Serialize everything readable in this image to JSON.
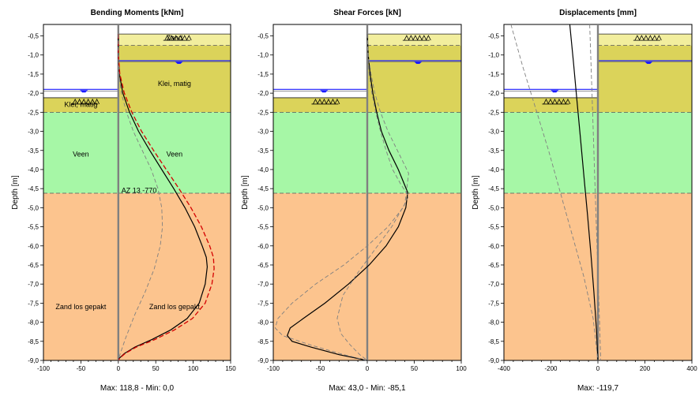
{
  "colors": {
    "layer_clay": "#dbd35a",
    "layer_clay_top": "#f2ee9e",
    "layer_peat": "#a6f7a6",
    "layer_sand": "#fcc48e",
    "wall": "#808080",
    "water": "#1a1aff",
    "dashed_line": "#808080",
    "red_dashed": "#d40000",
    "main_line": "#000000"
  },
  "chart_data": [
    {
      "type": "line",
      "title": "Bending Moments [kNm]",
      "ylabel": "Depth [m]",
      "footer": "Max: 118,8 - Min: 0,0",
      "xlim": [
        -100,
        150
      ],
      "ylim": [
        -9.0,
        -0.2
      ],
      "xticks": [
        -100,
        -50,
        0,
        50,
        100,
        150
      ],
      "yticks": [
        -0.5,
        -1.0,
        -1.5,
        -2.0,
        -2.5,
        -3.0,
        -3.5,
        -4.0,
        -4.5,
        -5.0,
        -5.5,
        -6.0,
        -6.5,
        -7.0,
        -7.5,
        -8.0,
        -8.5,
        -9.0
      ],
      "ytick_labels": [
        "-0,5",
        "-1,0",
        "-1,5",
        "-2,0",
        "-2,5",
        "-3,0",
        "-3,5",
        "-4,0",
        "-4,5",
        "-5,0",
        "-5,5",
        "-6,0",
        "-6,5",
        "-7,0",
        "-7,5",
        "-8,0",
        "-8,5",
        "-9,0"
      ],
      "grid": false,
      "wall_label": "AZ 13 -770",
      "soil_labels": [
        {
          "text": "Zand",
          "side": "right",
          "depth": -0.55
        },
        {
          "text": "Klei, matig",
          "side": "right",
          "depth": -1.75
        },
        {
          "text": "Klei, matig",
          "side": "left",
          "depth": -2.3
        },
        {
          "text": "Veen",
          "side": "left",
          "depth": -3.6
        },
        {
          "text": "Veen",
          "side": "right",
          "depth": -3.6
        },
        {
          "text": "Zand los gepakt",
          "side": "left",
          "depth": -7.6
        },
        {
          "text": "Zand los gepakt",
          "side": "right",
          "depth": -7.6
        }
      ],
      "series": [
        {
          "role": "result",
          "style": "solid",
          "color": "#000000",
          "x": [
            0,
            0,
            1.5,
            6,
            15,
            27,
            42,
            58,
            74,
            89,
            102,
            112,
            117.5,
            118.8,
            116,
            108,
            92,
            70,
            45,
            22,
            8,
            1.5,
            0
          ],
          "y": [
            -0.45,
            -1.0,
            -1.5,
            -2.0,
            -2.5,
            -3.0,
            -3.5,
            -4.0,
            -4.5,
            -5.0,
            -5.5,
            -6.0,
            -6.3,
            -6.55,
            -7.0,
            -7.5,
            -7.9,
            -8.2,
            -8.45,
            -8.65,
            -8.82,
            -8.94,
            -9.0
          ]
        },
        {
          "role": "envelope",
          "style": "dashed",
          "color": "#d40000",
          "x": [
            0,
            0,
            2,
            8,
            18,
            31,
            47,
            64,
            81,
            97,
            111,
            122,
            127,
            128,
            125,
            116,
            99,
            75,
            49,
            24,
            9,
            2,
            0
          ],
          "y": [
            -0.45,
            -1.0,
            -1.5,
            -2.0,
            -2.5,
            -3.0,
            -3.5,
            -4.0,
            -4.5,
            -5.0,
            -5.5,
            -6.0,
            -6.3,
            -6.6,
            -7.0,
            -7.5,
            -7.9,
            -8.2,
            -8.45,
            -8.65,
            -8.82,
            -8.94,
            -9.0
          ]
        },
        {
          "role": "envelope",
          "style": "dashed",
          "color": "#808080",
          "x": [
            0,
            0,
            1,
            4,
            11,
            20,
            32,
            44,
            53,
            58,
            59,
            56,
            48,
            36,
            22,
            10,
            3,
            0
          ],
          "y": [
            -0.45,
            -1.0,
            -1.5,
            -2.0,
            -2.5,
            -3.0,
            -3.5,
            -4.0,
            -4.5,
            -5.0,
            -5.5,
            -6.0,
            -6.6,
            -7.2,
            -7.8,
            -8.4,
            -8.8,
            -9.0
          ]
        }
      ]
    },
    {
      "type": "line",
      "title": "Shear Forces [kN]",
      "ylabel": "Depth [m]",
      "footer": "Max: 43,0 - Min: -85,1",
      "xlim": [
        -100,
        100
      ],
      "ylim": [
        -9.0,
        -0.2
      ],
      "xticks": [
        -100,
        -50,
        0,
        50,
        100
      ],
      "yticks": [
        -0.5,
        -1.0,
        -1.5,
        -2.0,
        -2.5,
        -3.0,
        -3.5,
        -4.0,
        -4.5,
        -5.0,
        -5.5,
        -6.0,
        -6.5,
        -7.0,
        -7.5,
        -8.0,
        -8.5,
        -9.0
      ],
      "ytick_labels": [
        "-0,5",
        "-1,0",
        "-1,5",
        "-2,0",
        "-2,5",
        "-3,0",
        "-3,5",
        "-4,0",
        "-4,5",
        "-5,0",
        "-5,5",
        "-6,0",
        "-6,5",
        "-7,0",
        "-7,5",
        "-8,0",
        "-8,5",
        "-9,0"
      ],
      "grid": false,
      "series": [
        {
          "role": "result",
          "style": "solid",
          "color": "#000000",
          "x": [
            0,
            1,
            3,
            6,
            10,
            15,
            23,
            33,
            43,
            41,
            33,
            20,
            2,
            -20,
            -45,
            -68,
            -82,
            -85.1,
            -80,
            -60,
            -30,
            0
          ],
          "y": [
            -0.45,
            -1.0,
            -1.5,
            -2.0,
            -2.5,
            -3.0,
            -3.5,
            -4.0,
            -4.6,
            -5.0,
            -5.5,
            -6.0,
            -6.5,
            -7.0,
            -7.5,
            -7.9,
            -8.15,
            -8.35,
            -8.5,
            -8.65,
            -8.85,
            -9.0
          ]
        },
        {
          "role": "envelope",
          "style": "dashed",
          "color": "#808080",
          "x": [
            0,
            1,
            4,
            8,
            14,
            22,
            32,
            44,
            40,
            26,
            8,
            -10,
            -26,
            -32,
            -28,
            -18,
            -8,
            0
          ],
          "y": [
            -0.45,
            -1.0,
            -1.5,
            -2.0,
            -2.5,
            -3.0,
            -3.5,
            -4.1,
            -4.9,
            -5.5,
            -6.1,
            -6.7,
            -7.3,
            -7.9,
            -8.3,
            -8.6,
            -8.85,
            -9.0
          ]
        },
        {
          "role": "envelope",
          "style": "dashed",
          "color": "#808080",
          "x": [
            0,
            0.5,
            2,
            5,
            9,
            14,
            20,
            27,
            36,
            44,
            38,
            22,
            0,
            -25,
            -55,
            -80,
            -95,
            -98,
            -90,
            -60,
            -25,
            0
          ],
          "y": [
            -0.45,
            -1.0,
            -1.5,
            -2.0,
            -2.5,
            -3.0,
            -3.5,
            -4.0,
            -4.4,
            -4.7,
            -5.0,
            -5.5,
            -6.0,
            -6.5,
            -7.0,
            -7.5,
            -7.9,
            -8.15,
            -8.35,
            -8.6,
            -8.85,
            -9.0
          ]
        }
      ]
    },
    {
      "type": "line",
      "title": "Displacements [mm]",
      "ylabel": "Depth [m]",
      "footer": "Max: -119,7",
      "xlim": [
        -400,
        400
      ],
      "ylim": [
        -9.0,
        -0.2
      ],
      "xticks": [
        -400,
        -200,
        0,
        200,
        400
      ],
      "yticks": [
        -0.5,
        -1.0,
        -1.5,
        -2.0,
        -2.5,
        -3.0,
        -3.5,
        -4.0,
        -4.5,
        -5.0,
        -5.5,
        -6.0,
        -6.5,
        -7.0,
        -7.5,
        -8.0,
        -8.5,
        -9.0
      ],
      "ytick_labels": [
        "-0,5",
        "-1,0",
        "-1,5",
        "-2,0",
        "-2,5",
        "-3,0",
        "-3,5",
        "-4,0",
        "-4,5",
        "-5,0",
        "-5,5",
        "-6,0",
        "-6,5",
        "-7,0",
        "-7,5",
        "-8,0",
        "-8,5",
        "-9,0"
      ],
      "grid": false,
      "series": [
        {
          "role": "result",
          "style": "solid",
          "color": "#000000",
          "x": [
            -119.7,
            -104,
            -89,
            -74,
            -59,
            -44,
            -30,
            -17,
            -6,
            0
          ],
          "y": [
            -0.2,
            -1.2,
            -2.2,
            -3.2,
            -4.2,
            -5.2,
            -6.2,
            -7.2,
            -8.2,
            -9.0
          ]
        },
        {
          "role": "envelope",
          "style": "dashed",
          "color": "#808080",
          "x": [
            -370,
            -320,
            -265,
            -210,
            -160,
            -110,
            -60,
            -20,
            0
          ],
          "y": [
            -0.2,
            -1.3,
            -2.4,
            -3.5,
            -4.6,
            -5.7,
            -6.8,
            -7.9,
            -9.0
          ]
        },
        {
          "role": "envelope",
          "style": "dashed",
          "color": "#808080",
          "x": [
            -35,
            -28,
            -21,
            -14,
            -7,
            0,
            7,
            12
          ],
          "y": [
            -0.2,
            -1.5,
            -2.8,
            -4.1,
            -5.4,
            -6.7,
            -8.0,
            -9.0
          ]
        }
      ]
    }
  ]
}
